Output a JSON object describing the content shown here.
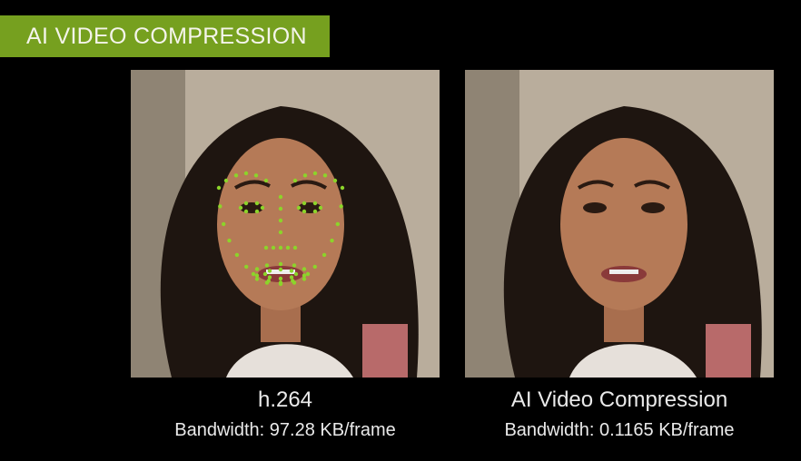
{
  "banner": {
    "title": "AI VIDEO COMPRESSION",
    "color": "#76a01f"
  },
  "left": {
    "label": "h.264",
    "bandwidth": "Bandwidth: 97.28 KB/frame",
    "landmarks_overlay": true,
    "landmark_color": "#8cd42a"
  },
  "right": {
    "label": "AI Video Compression",
    "bandwidth": "Bandwidth: 0.1165 KB/frame"
  }
}
